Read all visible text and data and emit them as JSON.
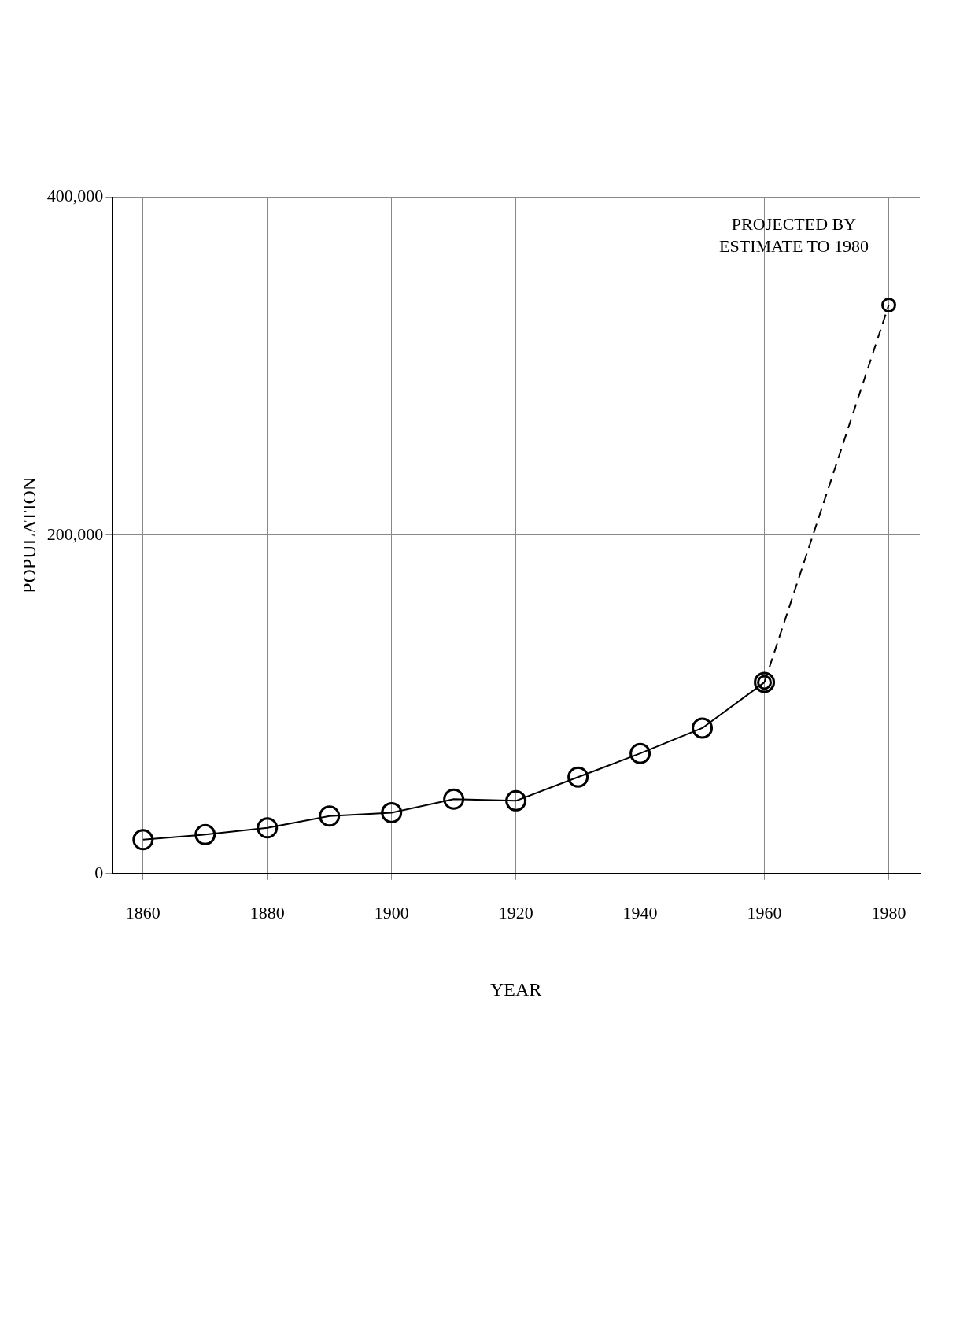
{
  "chart_data": {
    "type": "line",
    "xlabel": "YEAR",
    "ylabel": "POPULATION",
    "annotations": [
      "PROJECTED BY\nESTIMATE TO 1980"
    ],
    "series": [
      {
        "color": "#000000",
        "line_style": "solid",
        "x": [
          1860,
          1870,
          1880,
          1890,
          1900,
          1910,
          1920,
          1930,
          1940,
          1950,
          1960
        ],
        "values": [
          20000,
          23000,
          27000,
          34000,
          36000,
          44000,
          43000,
          57000,
          71000,
          86000,
          113000
        ]
      },
      {
        "color": "#000000",
        "line_style": "dashed",
        "x": [
          1960,
          1980
        ],
        "values": [
          113000,
          336000
        ]
      }
    ],
    "xlim": [
      1855,
      1985
    ],
    "xticks": [
      1860,
      1880,
      1900,
      1920,
      1940,
      1960,
      1980
    ],
    "ylim": [
      0,
      400000
    ],
    "yticks": [
      0,
      {
        "value": 200000,
        "label": "200,000"
      },
      {
        "value": 400000,
        "label": "400,000"
      }
    ],
    "grid": true,
    "marker": "circle",
    "legend": false
  }
}
